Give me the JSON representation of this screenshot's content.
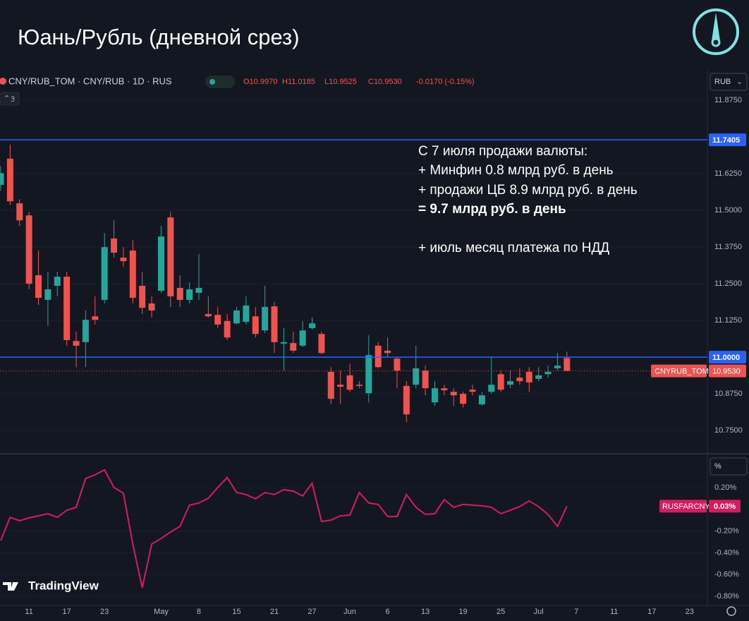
{
  "page_title": "Юань/Рубль (дневной срез)",
  "brand": "TradingView",
  "currency": "RUB",
  "indicator_count": "3",
  "indicator_unit": "%",
  "chart_data": [
    {
      "type": "candlestick",
      "title": "CNY/RUB_TOM · CNY/RUB · 1D · RUS",
      "ohlc_legend": [
        "O10.9970",
        "H11.0185",
        "L10.9525",
        "C10.9530",
        "-0.0170 (-0.15%)"
      ],
      "annotation": [
        "С 7 июля продажи валюты:",
        "+ Минфин 0.8 млрд руб. в день",
        "+ продажи ЦБ 8.9 млрд руб. в день",
        "= 9.7 млрд руб. в день",
        "+ июль месяц платежа по НДД"
      ],
      "categories": [
        null,
        null,
        null,
        "11",
        null,
        null,
        null,
        "17",
        null,
        null,
        null,
        "23",
        null,
        null,
        null,
        null,
        null,
        "May",
        null,
        null,
        null,
        "8",
        null,
        null,
        null,
        "15",
        null,
        null,
        null,
        "21",
        null,
        null,
        null,
        "27",
        null,
        null,
        null,
        "Jun",
        null,
        null,
        null,
        "6",
        null,
        null,
        null,
        "13",
        null,
        null,
        null,
        "19",
        null,
        null,
        null,
        "25",
        null,
        null,
        null,
        "Jul",
        null,
        null,
        null,
        "7",
        null,
        null,
        null,
        "11",
        null,
        null,
        null,
        "17",
        null,
        null,
        null,
        "23"
      ],
      "open": [
        11.587,
        11.676,
        11.524,
        11.483,
        11.279,
        11.195,
        11.243,
        11.274,
        11.055,
        11.051,
        11.139,
        11.195,
        11.404,
        11.339,
        11.363,
        11.243,
        11.183,
        11.226,
        11.476,
        11.236,
        11.195,
        11.219,
        11.147,
        11.144,
        11.123,
        11.115,
        11.12,
        11.139,
        11.091,
        11.173,
        11.046,
        11.048,
        11.039,
        11.099,
        11.079,
        10.95,
        10.906,
        10.938,
        10.906,
        10.877,
        11.039,
        11.022,
        10.995,
        10.902,
        10.906,
        10.954,
        10.846,
        10.894,
        10.882,
        10.875,
        10.889,
        10.839,
        10.882,
        10.942,
        10.906,
        10.93,
        10.95,
        10.926,
        10.942,
        10.962,
        10.997,
        null,
        null,
        null,
        null,
        null,
        null,
        null,
        null,
        null,
        null,
        null,
        null,
        null
      ],
      "high": [
        11.651,
        11.724,
        11.538,
        11.495,
        11.363,
        11.291,
        11.291,
        11.291,
        11.087,
        11.159,
        11.207,
        11.423,
        11.466,
        11.375,
        11.399,
        11.291,
        11.207,
        11.447,
        11.495,
        11.279,
        11.255,
        11.351,
        11.207,
        11.171,
        11.147,
        11.171,
        11.207,
        11.171,
        11.243,
        11.188,
        11.099,
        11.087,
        11.123,
        11.135,
        11.087,
        10.966,
        10.954,
        10.978,
        10.918,
        11.075,
        11.051,
        11.067,
        11.002,
        10.918,
        11.039,
        10.971,
        10.918,
        10.906,
        10.894,
        10.882,
        10.906,
        10.882,
        11.002,
        10.954,
        10.954,
        10.962,
        10.966,
        10.966,
        10.971,
        11.014,
        11.0185,
        null,
        null,
        null,
        null,
        null,
        null,
        null,
        null,
        null,
        null,
        null,
        null,
        null
      ],
      "low": [
        11.567,
        11.519,
        11.447,
        11.231,
        11.178,
        11.106,
        11.207,
        11.039,
        10.966,
        10.966,
        11.111,
        11.183,
        11.339,
        11.308,
        11.183,
        11.147,
        11.135,
        11.219,
        11.171,
        11.171,
        11.183,
        11.195,
        11.135,
        11.099,
        11.058,
        11.111,
        11.111,
        11.067,
        11.082,
        11.014,
        10.954,
        11.014,
        11.034,
        11.094,
        11.01,
        10.839,
        10.841,
        10.882,
        10.894,
        10.846,
        10.962,
        11.002,
        10.894,
        10.779,
        10.894,
        10.87,
        10.834,
        10.87,
        10.834,
        10.829,
        10.87,
        10.834,
        10.875,
        10.882,
        10.894,
        10.906,
        10.882,
        10.918,
        10.93,
        10.954,
        10.9525,
        null,
        null,
        null,
        null,
        null,
        null,
        null,
        null,
        null,
        null,
        null,
        null,
        null
      ],
      "close": [
        11.627,
        11.531,
        11.466,
        11.25,
        11.202,
        11.231,
        11.274,
        11.058,
        11.039,
        11.127,
        11.127,
        11.375,
        11.356,
        11.327,
        11.202,
        11.168,
        11.159,
        11.411,
        11.207,
        11.195,
        11.231,
        11.236,
        11.139,
        11.111,
        11.067,
        11.159,
        11.176,
        11.079,
        11.171,
        11.051,
        11.051,
        11.022,
        11.091,
        11.115,
        11.014,
        10.858,
        10.899,
        10.889,
        10.902,
        11.007,
        10.966,
        11.014,
        10.954,
        10.805,
        10.962,
        10.894,
        10.894,
        10.887,
        10.87,
        10.841,
        10.882,
        10.87,
        10.906,
        10.889,
        10.918,
        10.918,
        10.914,
        10.938,
        10.95,
        10.971,
        10.953,
        null,
        null,
        null,
        null,
        null,
        null,
        null,
        null,
        null,
        null,
        null,
        null,
        null
      ],
      "up_color": "#26a69a",
      "down_color": "#ef5350",
      "ylim": [
        10.678,
        11.909
      ],
      "yticks": [
        {
          "value": 11.875,
          "label": "11.8750"
        },
        {
          "value": 11.625,
          "label": "11.6250"
        },
        {
          "value": 11.5,
          "label": "11.5000"
        },
        {
          "value": 11.375,
          "label": "11.3750"
        },
        {
          "value": 11.25,
          "label": "11.2500"
        },
        {
          "value": 11.125,
          "label": "11.1250"
        },
        {
          "value": 10.875,
          "label": "10.8750"
        },
        {
          "value": 10.75,
          "label": "10.7500"
        }
      ],
      "grid": true,
      "hlines": [
        {
          "value": 11.7405,
          "label": "11.7405"
        },
        {
          "value": 11,
          "label": "11.0000"
        }
      ],
      "hline_color": "#2962ff",
      "last_name": "CNYRUB_TOM",
      "last_label": "10.9530"
    },
    {
      "type": "line",
      "series": [
        {
          "name": "RUSFARCNY",
          "color": "#d81b60",
          "values": [
            -0.286,
            -0.072,
            -0.104,
            -0.078,
            -0.059,
            -0.039,
            -0.072,
            -0.007,
            0.02,
            0.286,
            0.319,
            0.364,
            0.202,
            0.15,
            -0.319,
            -0.722,
            -0.319,
            -0.267,
            -0.208,
            -0.156,
            0.039,
            0.059,
            0.104,
            0.202,
            0.293,
            0.156,
            0.137,
            0.098,
            0.156,
            0.137,
            0.182,
            0.169,
            0.124,
            0.241,
            -0.111,
            -0.098,
            -0.059,
            -0.052,
            0.156,
            0.059,
            0.046,
            -0.065,
            -0.065,
            0.137,
            0.02,
            -0.046,
            -0.039,
            0.091,
            0.02,
            0.046,
            0.039,
            0.033,
            0.02,
            -0.039,
            -0.007,
            0.026,
            0.078,
            0.026,
            -0.046,
            -0.156,
            0.03
          ],
          "last_label": "0.03%"
        }
      ],
      "ylim": [
        -0.885,
        0.5
      ],
      "yticks": [
        {
          "value": 0.2,
          "label": "0.20%"
        },
        {
          "value": -0.2,
          "label": "-0.20%"
        },
        {
          "value": -0.4,
          "label": "-0.40%"
        },
        {
          "value": -0.6,
          "label": "-0.60%"
        },
        {
          "value": -0.8,
          "label": "-0.80%"
        }
      ]
    }
  ]
}
